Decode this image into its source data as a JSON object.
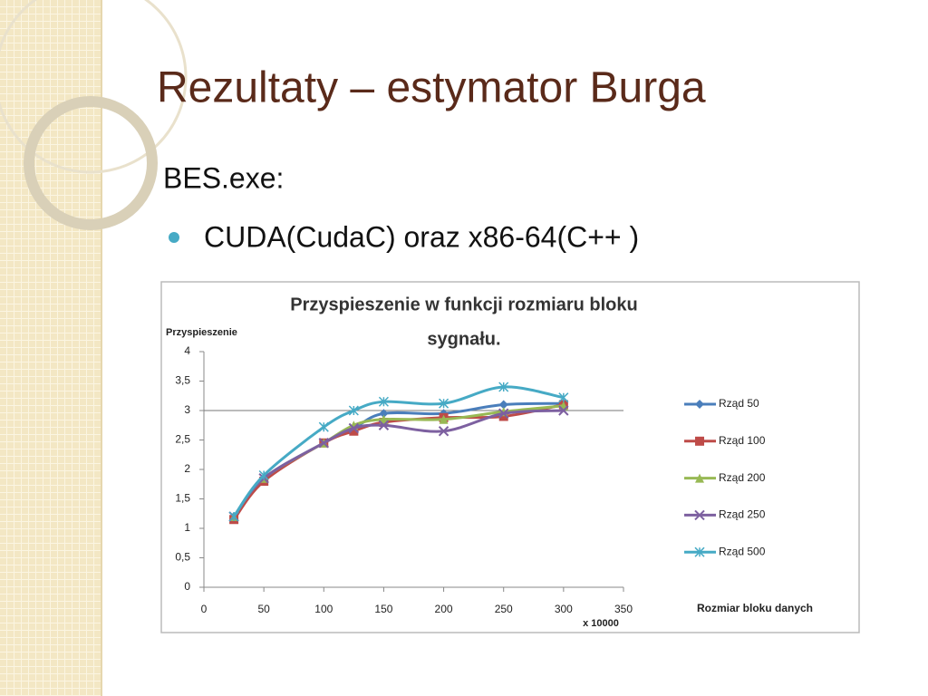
{
  "slide": {
    "title": "Rezultaty – estymator Burga",
    "subtitle": "BES.exe:",
    "bullets": [
      "CUDA(CudaC) oraz x86-64(C++ )"
    ]
  },
  "chart_data": {
    "type": "line",
    "title": [
      "Przyspieszenie w funkcji rozmiaru bloku",
      "sygnału."
    ],
    "y_label": "Przyspieszenie",
    "x_label": "Rozmiar bloku danych",
    "x_unit": "x 10000",
    "x": [
      25,
      50,
      100,
      125,
      150,
      200,
      250,
      300
    ],
    "series": [
      {
        "name": "Rząd 50",
        "color": "#4a7ebb",
        "marker": "diamond",
        "values": [
          1.2,
          1.85,
          2.45,
          2.7,
          2.95,
          2.95,
          3.1,
          3.12
        ]
      },
      {
        "name": "Rząd 100",
        "color": "#be4b48",
        "marker": "square",
        "values": [
          1.15,
          1.8,
          2.45,
          2.65,
          2.8,
          2.88,
          2.9,
          3.1
        ]
      },
      {
        "name": "Rząd 200",
        "color": "#98b954",
        "marker": "triangle",
        "values": [
          1.2,
          1.85,
          2.45,
          2.75,
          2.85,
          2.85,
          2.98,
          3.08
        ]
      },
      {
        "name": "Rząd 250",
        "color": "#7d60a0",
        "marker": "x",
        "values": [
          1.2,
          1.85,
          2.45,
          2.7,
          2.75,
          2.65,
          2.95,
          3.0
        ]
      },
      {
        "name": "Rząd 500",
        "color": "#46aac5",
        "marker": "star",
        "values": [
          1.2,
          1.9,
          2.72,
          3.0,
          3.15,
          3.12,
          3.4,
          3.22
        ]
      }
    ],
    "xlim": [
      0,
      350
    ],
    "xticks": [
      0,
      50,
      100,
      150,
      200,
      250,
      300,
      350
    ],
    "ylim": [
      0,
      4
    ],
    "yticks": [
      0,
      {
        "value": 0.5,
        "label": "0,5"
      },
      1,
      {
        "value": 1.5,
        "label": "1,5"
      },
      2,
      {
        "value": 2.5,
        "label": "2,5"
      },
      3,
      {
        "value": 3.5,
        "label": "3,5"
      },
      4
    ],
    "hline": 3,
    "legend": "right"
  }
}
